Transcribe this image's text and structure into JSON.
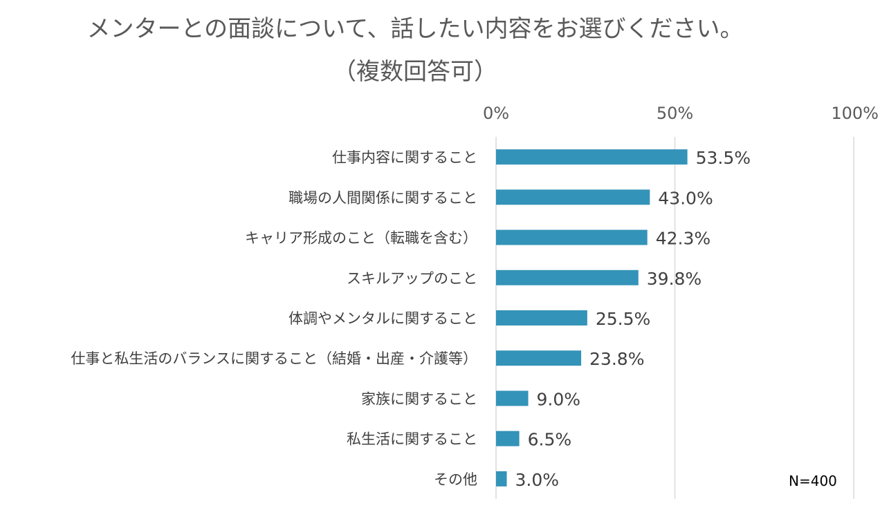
{
  "title_line1": "メンターとの面談について、話したい内容をお選びください。",
  "title_line2": "（複数回答可）",
  "note": "N=400",
  "chart_data": {
    "type": "bar",
    "orientation": "horizontal",
    "categories": [
      "仕事内容に関すること",
      "職場の人間関係に関すること",
      "キャリア形成のこと（転職を含む）",
      "スキルアップのこと",
      "体調やメンタルに関すること",
      "仕事と私生活のバランスに関すること（結婚・出産・介護等）",
      "家族に関すること",
      "私生活に関すること",
      "その他"
    ],
    "values": [
      53.5,
      43.0,
      42.3,
      39.8,
      25.5,
      23.8,
      9.0,
      6.5,
      3.0
    ],
    "value_labels": [
      "53.5%",
      "43.0%",
      "42.3%",
      "39.8%",
      "25.5%",
      "23.8%",
      "9.0%",
      "6.5%",
      "3.0%"
    ],
    "xlim": [
      0,
      100
    ],
    "x_ticks": [
      "0%",
      "50%",
      "100%"
    ],
    "x_axis_position": "top",
    "grid": true,
    "bar_color": "#3493b8",
    "grid_color": "#d9d9d9"
  }
}
